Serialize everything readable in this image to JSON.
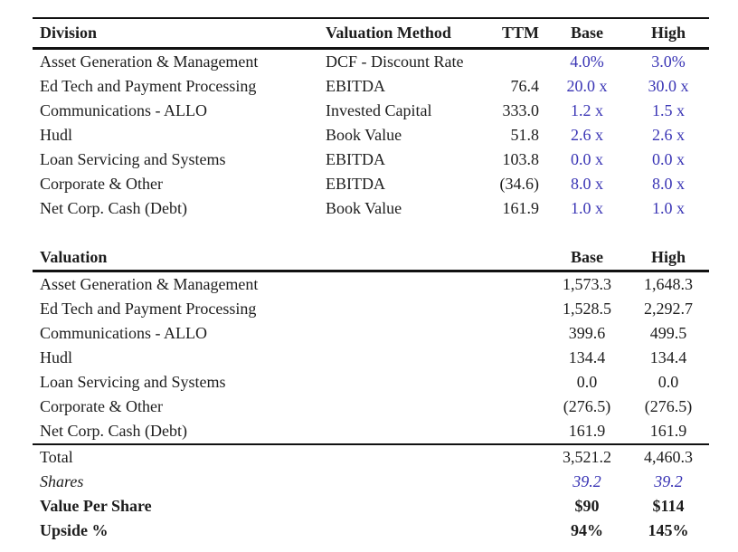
{
  "colors": {
    "accent_blue": "#3a35b5",
    "text": "#1d1d1d",
    "rule": "#111111"
  },
  "table1": {
    "headers": [
      "Division",
      "Valuation Method",
      "TTM",
      "Base",
      "High"
    ],
    "rows": [
      {
        "division": "Asset Generation & Management",
        "method": "DCF - Discount Rate",
        "ttm": "",
        "base": "4.0%",
        "high": "3.0%"
      },
      {
        "division": "Ed Tech and Payment Processing",
        "method": "EBITDA",
        "ttm": "76.4",
        "base": "20.0 x",
        "high": "30.0 x"
      },
      {
        "division": "Communications - ALLO",
        "method": "Invested Capital",
        "ttm": "333.0",
        "base": "1.2 x",
        "high": "1.5 x"
      },
      {
        "division": "Hudl",
        "method": "Book Value",
        "ttm": "51.8",
        "base": "2.6 x",
        "high": "2.6 x"
      },
      {
        "division": "Loan Servicing and Systems",
        "method": "EBITDA",
        "ttm": "103.8",
        "base": "0.0 x",
        "high": "0.0 x"
      },
      {
        "division": "Corporate & Other",
        "method": "EBITDA",
        "ttm": "(34.6)",
        "base": "8.0 x",
        "high": "8.0 x"
      },
      {
        "division": "Net Corp. Cash (Debt)",
        "method": "Book Value",
        "ttm": "161.9",
        "base": "1.0 x",
        "high": "1.0 x"
      }
    ]
  },
  "table2": {
    "headers": [
      "Valuation",
      "Base",
      "High"
    ],
    "rows": [
      {
        "label": "Asset Generation & Management",
        "base": "1,573.3",
        "high": "1,648.3",
        "kind": "data"
      },
      {
        "label": "Ed Tech and Payment Processing",
        "base": "1,528.5",
        "high": "2,292.7",
        "kind": "data"
      },
      {
        "label": "Communications - ALLO",
        "base": "399.6",
        "high": "499.5",
        "kind": "data"
      },
      {
        "label": "Hudl",
        "base": "134.4",
        "high": "134.4",
        "kind": "data"
      },
      {
        "label": "Loan Servicing and Systems",
        "base": "0.0",
        "high": "0.0",
        "kind": "data"
      },
      {
        "label": "Corporate & Other",
        "base": "(276.5)",
        "high": "(276.5)",
        "kind": "data"
      },
      {
        "label": "Net Corp. Cash (Debt)",
        "base": "161.9",
        "high": "161.9",
        "kind": "data"
      },
      {
        "label": "Total",
        "base": "3,521.2",
        "high": "4,460.3",
        "kind": "total"
      },
      {
        "label": "Shares",
        "base": "39.2",
        "high": "39.2",
        "kind": "shares"
      },
      {
        "label": "Value Per Share",
        "base": "$90",
        "high": "$114",
        "kind": "vps"
      },
      {
        "label": "Upside %",
        "base": "94%",
        "high": "145%",
        "kind": "upside"
      }
    ]
  }
}
